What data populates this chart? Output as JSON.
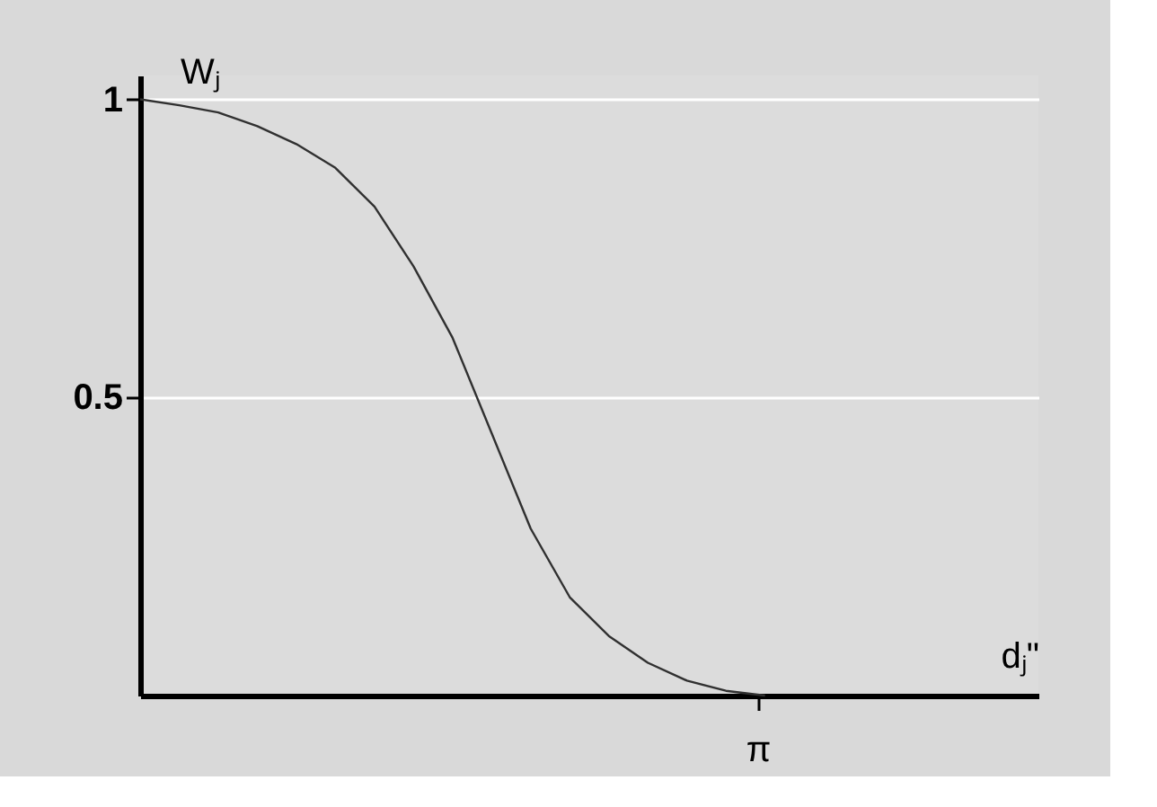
{
  "chart_data": {
    "type": "line",
    "xlabel": "dⱼ\"",
    "ylabel": "Wⱼ",
    "categories": [
      null,
      null,
      null,
      null,
      null,
      null,
      null,
      null,
      null,
      null,
      null,
      null,
      null,
      null,
      null,
      null,
      "π",
      null,
      null,
      null,
      null,
      null,
      null,
      null
    ],
    "series": [
      {
        "color": "#303030",
        "values": [
          1,
          0.99,
          0.978,
          0.955,
          0.925,
          0.885,
          0.82,
          0.72,
          0.6,
          0.44,
          0.28,
          0.165,
          0.1,
          0.055,
          0.025,
          0.008,
          0,
          null,
          null,
          null,
          null,
          null,
          null,
          null
        ]
      }
    ],
    "ylim": [
      0,
      1.04
    ],
    "yticks": [
      {
        "value": 0.5,
        "label": "0.5"
      },
      {
        "value": 1,
        "label": "1"
      }
    ],
    "grid": "y",
    "marker": "none",
    "line_style": "solid",
    "legend": false
  }
}
